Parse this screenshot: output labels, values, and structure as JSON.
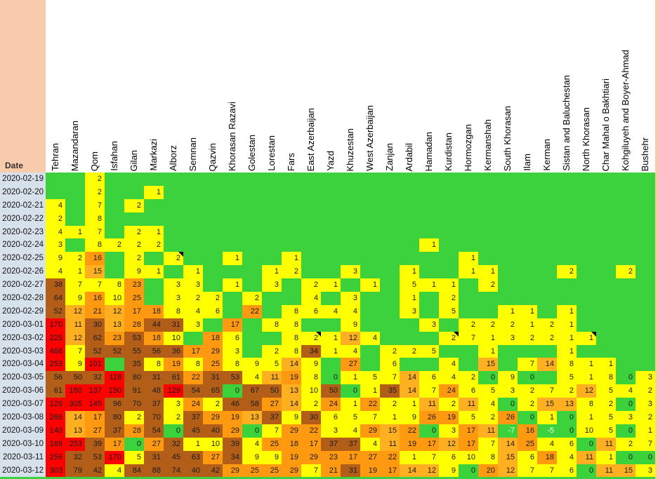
{
  "corner_label": "Date",
  "colors": {
    "header_bg": "#F8CBAD",
    "date_cell_bg": "#D7E1EB",
    "green": "#3BD23C",
    "yellow": "#FFFF00",
    "amber": "#FFB020",
    "orange": "#FF9910",
    "brown": "#B25E18",
    "red": "#FE0000",
    "negative_text": "#FFFFFF",
    "cell_text": "#1A1A1A"
  },
  "chart_data": {
    "type": "heatmap",
    "title": "",
    "corner_label": "Date",
    "x_labels": [
      "Tehran",
      "Mazandaran",
      "Qom",
      "Isfahan",
      "Gilan",
      "Markazi",
      "Alborz",
      "Semnan",
      "Qazvin",
      "Khorasan Razavi",
      "Golestan",
      "Lorestan",
      "Fars",
      "East Azerbaijan",
      "Yazd",
      "Khuzestan",
      "West Azerbaijan",
      "Zanjan",
      "Ardabil",
      "Hamadan",
      "Kurdistan",
      "Hormozgan",
      "Kermanshah",
      "South Khorasan",
      "Ilam",
      "Kerman",
      "Sistan and Baluchestan",
      "North Khorasan",
      "Char Mahal o Bakhtiari",
      "Kohgiluyeh and Boyer-Ahmad",
      "Bushehr"
    ],
    "y_labels": [
      "2020-02-19",
      "2020-02-20",
      "2020-02-21",
      "2020-02-22",
      "2020-02-23",
      "2020-02-24",
      "2020-02-25",
      "2020-02-26",
      "2020-02-27",
      "2020-02-28",
      "2020-02-29",
      "2020-03-01",
      "2020-03-02",
      "2020-03-03",
      "2020-03-04",
      "2020-03-05",
      "2020-03-06",
      "2020-03-07",
      "2020-03-08",
      "2020-03-09",
      "2020-03-10",
      "2020-03-11",
      "2020-03-12"
    ],
    "values": [
      [
        null,
        null,
        2,
        null,
        null,
        null,
        null,
        null,
        null,
        null,
        null,
        null,
        null,
        null,
        null,
        null,
        null,
        null,
        null,
        null,
        null,
        null,
        null,
        null,
        null,
        null,
        null,
        null,
        null,
        null,
        null
      ],
      [
        null,
        null,
        2,
        null,
        null,
        1,
        null,
        null,
        null,
        null,
        null,
        null,
        null,
        null,
        null,
        null,
        null,
        null,
        null,
        null,
        null,
        null,
        null,
        null,
        null,
        null,
        null,
        null,
        null,
        null,
        null
      ],
      [
        4,
        null,
        7,
        null,
        2,
        null,
        null,
        null,
        null,
        null,
        null,
        null,
        null,
        null,
        null,
        null,
        null,
        null,
        null,
        null,
        null,
        null,
        null,
        null,
        null,
        null,
        null,
        null,
        null,
        null,
        null
      ],
      [
        2,
        null,
        8,
        null,
        null,
        null,
        null,
        null,
        null,
        null,
        null,
        null,
        null,
        null,
        null,
        null,
        null,
        null,
        null,
        null,
        null,
        null,
        null,
        null,
        null,
        null,
        null,
        null,
        null,
        null,
        null
      ],
      [
        4,
        1,
        7,
        null,
        2,
        1,
        null,
        null,
        null,
        null,
        null,
        null,
        null,
        null,
        null,
        null,
        null,
        null,
        null,
        null,
        null,
        null,
        null,
        null,
        null,
        null,
        null,
        null,
        null,
        null,
        null
      ],
      [
        3,
        null,
        8,
        2,
        2,
        2,
        null,
        null,
        null,
        null,
        null,
        null,
        null,
        null,
        null,
        null,
        null,
        null,
        null,
        1,
        null,
        null,
        null,
        null,
        null,
        null,
        null,
        null,
        null,
        null,
        null
      ],
      [
        9,
        2,
        16,
        null,
        2,
        null,
        2,
        null,
        null,
        1,
        null,
        null,
        1,
        null,
        null,
        null,
        null,
        null,
        null,
        null,
        null,
        1,
        null,
        null,
        null,
        null,
        null,
        null,
        null,
        null,
        null
      ],
      [
        4,
        1,
        15,
        null,
        9,
        1,
        null,
        1,
        null,
        null,
        null,
        1,
        2,
        null,
        null,
        3,
        null,
        null,
        1,
        null,
        null,
        1,
        1,
        null,
        null,
        null,
        2,
        null,
        null,
        2,
        null
      ],
      [
        38,
        7,
        7,
        8,
        23,
        null,
        3,
        3,
        null,
        1,
        null,
        3,
        null,
        2,
        1,
        null,
        1,
        null,
        5,
        1,
        1,
        null,
        2,
        null,
        null,
        null,
        null,
        null,
        null,
        null,
        null
      ],
      [
        64,
        9,
        16,
        10,
        25,
        null,
        3,
        2,
        2,
        null,
        2,
        null,
        null,
        4,
        null,
        3,
        null,
        null,
        1,
        null,
        2,
        null,
        null,
        null,
        null,
        null,
        null,
        null,
        null,
        null,
        null
      ],
      [
        52,
        12,
        21,
        12,
        17,
        18,
        8,
        4,
        6,
        null,
        22,
        null,
        8,
        6,
        4,
        4,
        null,
        null,
        3,
        null,
        5,
        null,
        null,
        1,
        1,
        null,
        1,
        null,
        null,
        null,
        null
      ],
      [
        170,
        11,
        30,
        13,
        28,
        44,
        31,
        3,
        null,
        17,
        null,
        8,
        8,
        null,
        null,
        9,
        null,
        null,
        null,
        3,
        null,
        2,
        2,
        2,
        1,
        2,
        1,
        null,
        null,
        null,
        null
      ],
      [
        225,
        12,
        62,
        23,
        53,
        18,
        10,
        null,
        18,
        6,
        null,
        null,
        8,
        2,
        1,
        12,
        4,
        null,
        null,
        null,
        2,
        7,
        1,
        3,
        2,
        2,
        1,
        1,
        null,
        null,
        null
      ],
      [
        468,
        7,
        52,
        52,
        55,
        56,
        36,
        17,
        29,
        3,
        null,
        2,
        8,
        34,
        1,
        4,
        null,
        2,
        2,
        5,
        null,
        null,
        1,
        null,
        null,
        null,
        1,
        null,
        null,
        null,
        null
      ],
      [
        253,
        9,
        101,
        null,
        35,
        8,
        19,
        8,
        25,
        8,
        9,
        5,
        14,
        9,
        null,
        27,
        null,
        6,
        null,
        null,
        4,
        null,
        15,
        null,
        7,
        14,
        8,
        1,
        1,
        null,
        null
      ],
      [
        56,
        50,
        32,
        118,
        80,
        31,
        61,
        22,
        31,
        53,
        4,
        11,
        19,
        8,
        0,
        1,
        5,
        7,
        14,
        6,
        4,
        2,
        0,
        9,
        0,
        null,
        5,
        1,
        8,
        0,
        3
      ],
      [
        61,
        180,
        137,
        150,
        91,
        48,
        129,
        54,
        65,
        0,
        67,
        50,
        13,
        10,
        50,
        0,
        1,
        35,
        14,
        7,
        24,
        6,
        5,
        3,
        2,
        7,
        2,
        12,
        5,
        4,
        2
      ],
      [
        126,
        305,
        145,
        96,
        70,
        37,
        3,
        24,
        2,
        46,
        58,
        27,
        14,
        2,
        24,
        1,
        22,
        2,
        1,
        11,
        2,
        11,
        4,
        0,
        2,
        15,
        13,
        8,
        2,
        0,
        3
      ],
      [
        266,
        14,
        17,
        80,
        2,
        70,
        2,
        37,
        29,
        19,
        13,
        37,
        9,
        30,
        6,
        5,
        7,
        1,
        9,
        26,
        19,
        5,
        2,
        26,
        0,
        1,
        0,
        1,
        5,
        3,
        2
      ],
      [
        140,
        13,
        27,
        37,
        28,
        54,
        0,
        45,
        40,
        29,
        0,
        7,
        29,
        22,
        3,
        4,
        29,
        15,
        22,
        0,
        3,
        17,
        11,
        -7,
        16,
        -5,
        0,
        10,
        5,
        0,
        1
      ],
      [
        169,
        253,
        39,
        17,
        0,
        27,
        32,
        1,
        10,
        39,
        4,
        25,
        18,
        17,
        37,
        37,
        4,
        11,
        19,
        17,
        12,
        17,
        7,
        14,
        25,
        4,
        6,
        0,
        11,
        2,
        7
      ],
      [
        256,
        32,
        53,
        170,
        5,
        31,
        45,
        63,
        27,
        34,
        9,
        9,
        19,
        29,
        23,
        17,
        27,
        22,
        1,
        7,
        6,
        10,
        8,
        15,
        6,
        18,
        4,
        11,
        1,
        0,
        0
      ],
      [
        303,
        79,
        42,
        4,
        84,
        88,
        74,
        40,
        42,
        29,
        25,
        25,
        29,
        7,
        21,
        31,
        19,
        17,
        14,
        12,
        9,
        0,
        20,
        12,
        7,
        7,
        6,
        0,
        11,
        15,
        3
      ]
    ],
    "comment_markers": [
      [
        6,
        6
      ],
      [
        12,
        13
      ],
      [
        12,
        20
      ],
      [
        12,
        27
      ]
    ],
    "color_scale": [
      {
        "max": 0,
        "color": "green"
      },
      {
        "max": 10,
        "color": "yellow"
      },
      {
        "max": 15,
        "color": "amber"
      },
      {
        "max": 29,
        "color": "orange"
      },
      {
        "max": 99,
        "color": "brown"
      },
      {
        "max": 100000,
        "color": "red"
      }
    ],
    "legend_position": "none",
    "grid": false
  }
}
